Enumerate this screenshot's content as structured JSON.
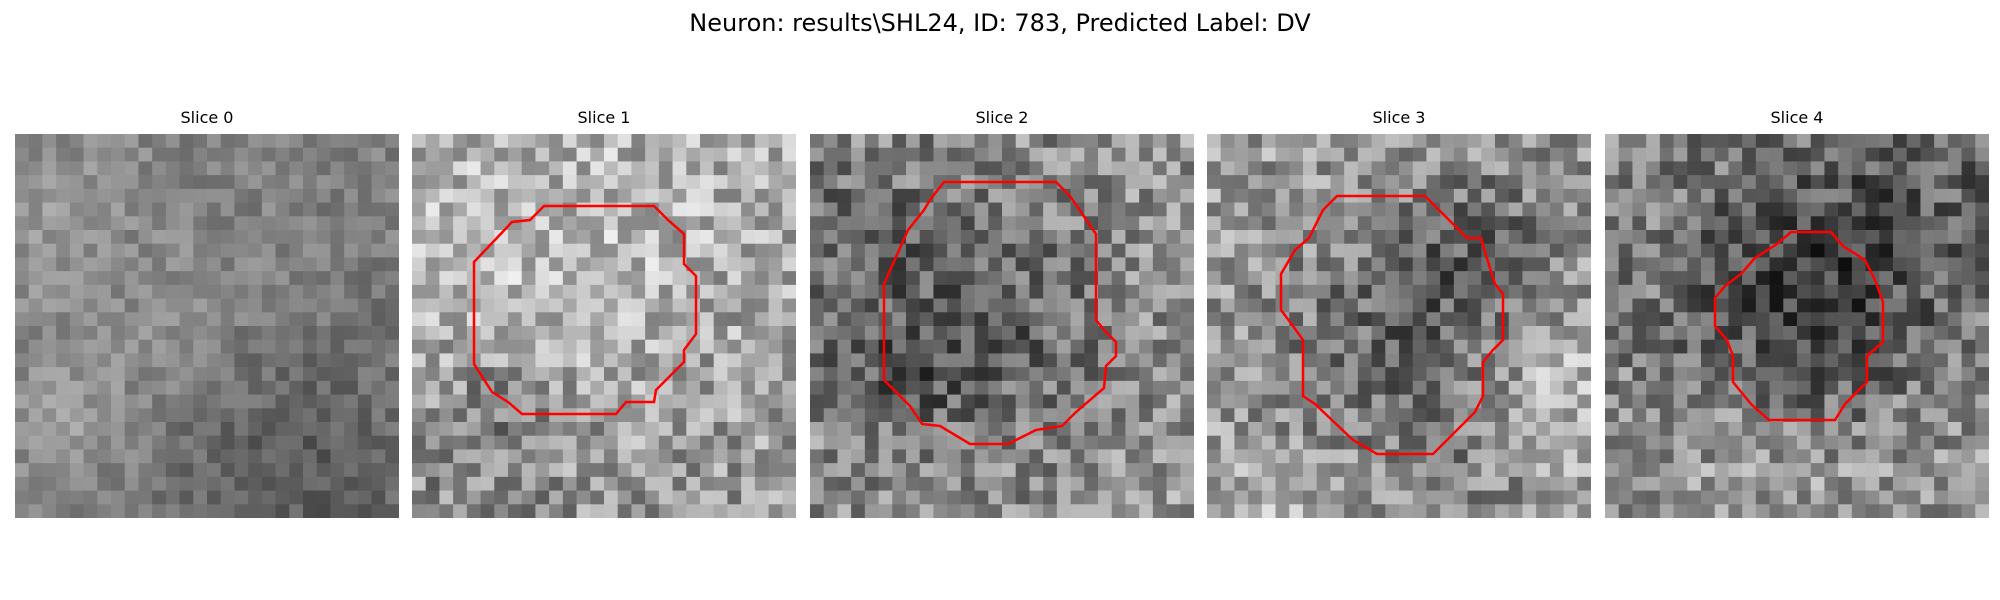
{
  "figure": {
    "title": "Neuron: results\\SHL24, ID: 783, Predicted Label: DV"
  },
  "slices": [
    {
      "label": "Slice 0",
      "has_contour": false,
      "seed": 11,
      "base": 128,
      "dark_center": 0
    },
    {
      "label": "Slice 1",
      "has_contour": true,
      "seed": 23,
      "base": 170,
      "dark_center": 10
    },
    {
      "label": "Slice 2",
      "has_contour": true,
      "seed": 37,
      "base": 150,
      "dark_center": 40
    },
    {
      "label": "Slice 3",
      "has_contour": true,
      "seed": 41,
      "base": 155,
      "dark_center": 50
    },
    {
      "label": "Slice 4",
      "has_contour": true,
      "seed": 59,
      "base": 140,
      "dark_center": 60
    }
  ],
  "colors": {
    "contour": "#ff0000"
  }
}
